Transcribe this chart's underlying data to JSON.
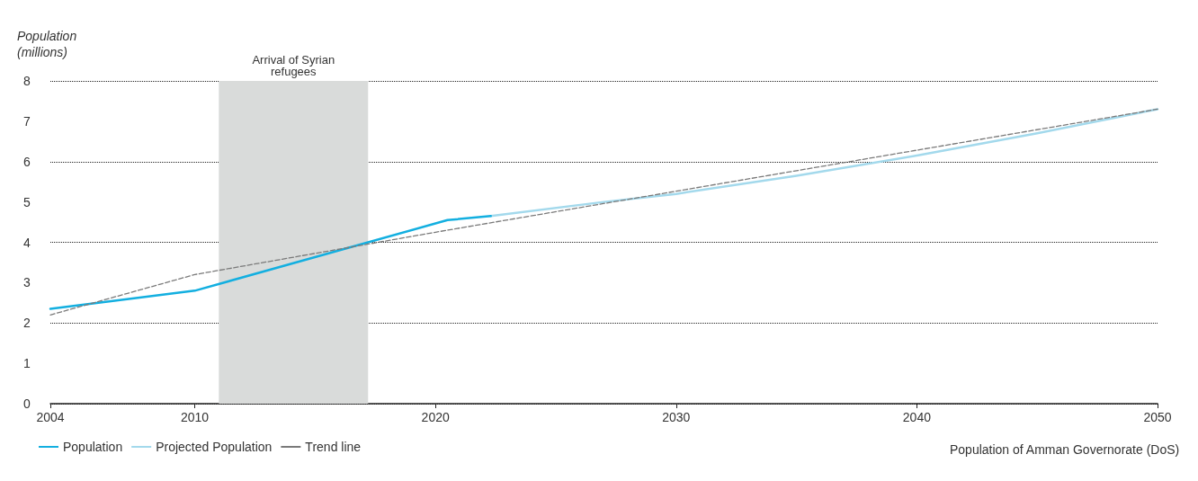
{
  "chart_data": {
    "type": "line",
    "ylabel": "Population\n(millions)",
    "xlim": [
      2004,
      2050
    ],
    "xticks": [
      2004,
      2010,
      2020,
      2030,
      2040,
      2050
    ],
    "ylim": [
      0,
      8
    ],
    "yticks": [
      0,
      1,
      2,
      3,
      4,
      5,
      6,
      7,
      8
    ],
    "series": [
      {
        "name": "Population",
        "color": "#13afe0",
        "x": [
          2004,
          2010,
          2020.5,
          2022.3
        ],
        "values": [
          2.35,
          2.8,
          4.55,
          4.65
        ]
      },
      {
        "name": "Projected Population",
        "color": "#a3d9ec",
        "x": [
          2022.3,
          2027,
          2030,
          2035,
          2040,
          2045,
          2050
        ],
        "values": [
          4.65,
          5.0,
          5.2,
          5.65,
          6.15,
          6.7,
          7.3
        ]
      },
      {
        "name": "Trend line",
        "color": "#7a7a7a",
        "line_style": "dashed",
        "x": [
          2004,
          2010,
          2020,
          2050
        ],
        "values": [
          2.2,
          3.2,
          4.25,
          7.3
        ]
      }
    ],
    "bands": [
      {
        "axis": "x",
        "from": 2011,
        "to": 2017.2,
        "label": "Arrival of Syrian\nrefugees",
        "color": "#d9dbda"
      }
    ],
    "annotations": [
      "Population of Amman Governorate (DoS)"
    ],
    "grid": "y",
    "legend": "bottom left",
    "marker": "none"
  }
}
